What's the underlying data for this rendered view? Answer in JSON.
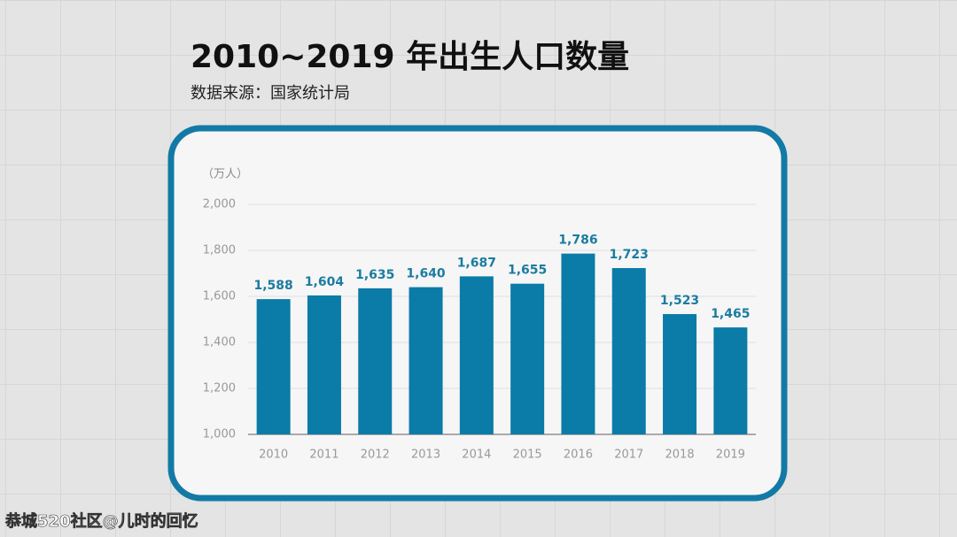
{
  "chart_data": {
    "type": "bar",
    "title": "2010~2019 年出生人口数量",
    "subtitle": "数据来源：国家统计局",
    "y_axis_label": "（万人）",
    "categories": [
      "2010",
      "2011",
      "2012",
      "2013",
      "2014",
      "2015",
      "2016",
      "2017",
      "2018",
      "2019"
    ],
    "values": [
      1588,
      1604,
      1635,
      1640,
      1687,
      1655,
      1786,
      1723,
      1523,
      1465
    ],
    "value_labels": [
      "1,588",
      "1,604",
      "1,635",
      "1,640",
      "1,687",
      "1,655",
      "1,786",
      "1,723",
      "1,523",
      "1,465"
    ],
    "color": "#0b7ba7",
    "ylim": [
      1000,
      2000
    ],
    "yticks": [
      {
        "value": 1000,
        "label": "1,000"
      },
      {
        "value": 1200,
        "label": "1,200"
      },
      {
        "value": 1400,
        "label": "1,400"
      },
      {
        "value": 1600,
        "label": "1,600"
      },
      {
        "value": 1800,
        "label": "1,800"
      },
      {
        "value": 2000,
        "label": "2,000"
      }
    ],
    "grid": true
  },
  "watermark": "恭城520社区@儿时的回忆"
}
